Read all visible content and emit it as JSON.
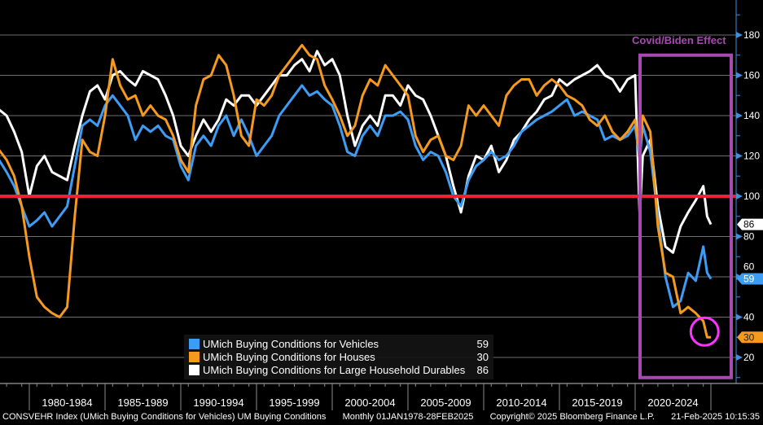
{
  "chart_data": {
    "type": "line",
    "title": "UMich Buying Conditions",
    "xlabel": "",
    "ylabel": "",
    "ylim": [
      10,
      190
    ],
    "xlim": [
      1978.0,
      2025.2
    ],
    "yticks": [
      20,
      40,
      60,
      80,
      100,
      120,
      140,
      160,
      180
    ],
    "x_tick_labels": [
      "1980-1984",
      "1985-1989",
      "1990-1994",
      "1995-1999",
      "2000-2004",
      "2005-2009",
      "2010-2014",
      "2015-2019",
      "2020-2024"
    ],
    "x_tick_boundaries": [
      1980,
      1985,
      1990,
      1995,
      2000,
      2005,
      2010,
      2015,
      2020,
      2025
    ],
    "grid": true,
    "legend_position": "bottom-center",
    "reference_line": {
      "value": 100,
      "color": "#ee2233"
    },
    "x": [
      1978,
      1978.5,
      1979,
      1979.5,
      1980,
      1980.5,
      1981,
      1981.5,
      1982,
      1982.5,
      1983,
      1983.5,
      1984,
      1984.5,
      1985,
      1985.5,
      1986,
      1986.5,
      1987,
      1987.5,
      1988,
      1988.5,
      1989,
      1989.5,
      1990,
      1990.5,
      1991,
      1991.5,
      1992,
      1992.5,
      1993,
      1993.5,
      1994,
      1994.5,
      1995,
      1995.5,
      1996,
      1996.5,
      1997,
      1997.5,
      1998,
      1998.5,
      1999,
      1999.5,
      2000,
      2000.5,
      2001,
      2001.5,
      2002,
      2002.5,
      2003,
      2003.5,
      2004,
      2004.5,
      2005,
      2005.5,
      2006,
      2006.5,
      2007,
      2007.5,
      2008,
      2008.5,
      2009,
      2009.5,
      2010,
      2010.5,
      2011,
      2011.5,
      2012,
      2012.5,
      2013,
      2013.5,
      2014,
      2014.5,
      2015,
      2015.5,
      2016,
      2016.5,
      2017,
      2017.5,
      2018,
      2018.5,
      2019,
      2019.5,
      2020,
      2020.3,
      2020.5,
      2021,
      2021.5,
      2022,
      2022.5,
      2023,
      2023.5,
      2024,
      2024.5,
      2024.75,
      2025
    ],
    "series": [
      {
        "name": "UMich Buying Conditions for Vehicles",
        "color": "#3d9df5",
        "last": 59,
        "values": [
          118,
          112,
          105,
          95,
          85,
          88,
          92,
          85,
          90,
          95,
          115,
          135,
          138,
          135,
          145,
          150,
          145,
          140,
          128,
          135,
          132,
          135,
          130,
          128,
          115,
          108,
          125,
          130,
          125,
          135,
          140,
          130,
          138,
          130,
          120,
          125,
          130,
          140,
          145,
          150,
          155,
          150,
          152,
          148,
          145,
          135,
          122,
          120,
          130,
          135,
          130,
          140,
          140,
          142,
          138,
          125,
          118,
          122,
          120,
          112,
          100,
          95,
          108,
          115,
          118,
          122,
          118,
          120,
          125,
          132,
          135,
          138,
          140,
          142,
          145,
          148,
          140,
          142,
          140,
          138,
          128,
          130,
          128,
          130,
          135,
          118,
          135,
          122,
          90,
          60,
          45,
          48,
          62,
          58,
          75,
          62,
          59
        ]
      },
      {
        "name": "UMich Buying Conditions for Houses",
        "color": "#f59a1f",
        "last": 30,
        "values": [
          123,
          118,
          110,
          95,
          70,
          50,
          45,
          42,
          40,
          45,
          90,
          128,
          122,
          120,
          140,
          168,
          155,
          148,
          150,
          140,
          145,
          140,
          138,
          130,
          118,
          112,
          145,
          158,
          160,
          170,
          165,
          150,
          130,
          125,
          148,
          145,
          150,
          160,
          165,
          170,
          175,
          170,
          168,
          155,
          148,
          140,
          130,
          135,
          150,
          158,
          155,
          165,
          160,
          155,
          150,
          130,
          122,
          128,
          130,
          120,
          118,
          125,
          145,
          140,
          145,
          140,
          135,
          150,
          155,
          158,
          158,
          150,
          155,
          158,
          155,
          150,
          148,
          145,
          138,
          135,
          140,
          132,
          128,
          132,
          138,
          120,
          140,
          132,
          85,
          62,
          60,
          42,
          45,
          42,
          38,
          30,
          30
        ]
      },
      {
        "name": "UMich Buying Conditions for Large Household Durables",
        "color": "#ffffff",
        "last": 86,
        "values": [
          143,
          140,
          132,
          122,
          100,
          115,
          120,
          112,
          110,
          108,
          125,
          140,
          152,
          155,
          148,
          160,
          162,
          158,
          155,
          162,
          160,
          158,
          150,
          140,
          125,
          120,
          130,
          138,
          132,
          138,
          148,
          145,
          150,
          150,
          145,
          150,
          155,
          160,
          160,
          165,
          168,
          162,
          172,
          165,
          168,
          160,
          140,
          125,
          135,
          140,
          135,
          150,
          150,
          145,
          155,
          150,
          148,
          140,
          130,
          120,
          105,
          92,
          110,
          120,
          118,
          125,
          112,
          118,
          128,
          132,
          138,
          142,
          148,
          150,
          158,
          155,
          158,
          160,
          162,
          165,
          160,
          158,
          152,
          158,
          160,
          90,
          120,
          128,
          95,
          75,
          72,
          85,
          92,
          98,
          105,
          90,
          86
        ]
      }
    ],
    "annotations": [
      {
        "text": "Covid/Biden Effect",
        "color": "#a64ab0",
        "type": "box",
        "x_range": [
          2019.9,
          2025.2
        ],
        "y_range": [
          10,
          170
        ]
      },
      {
        "type": "circle",
        "color": "#ff33ff",
        "x": 2024.8,
        "y": 32
      }
    ]
  },
  "footer": {
    "index": "CONSVEHR Index (UMich Buying Conditions for Vehicles) UM Buying Conditions",
    "frequency": "Monthly 01JAN1978-28FEB2025",
    "copyright": "Copyright© 2025 Bloomberg Finance L.P.",
    "timestamp": "21-Feb-2025 10:15:35"
  }
}
